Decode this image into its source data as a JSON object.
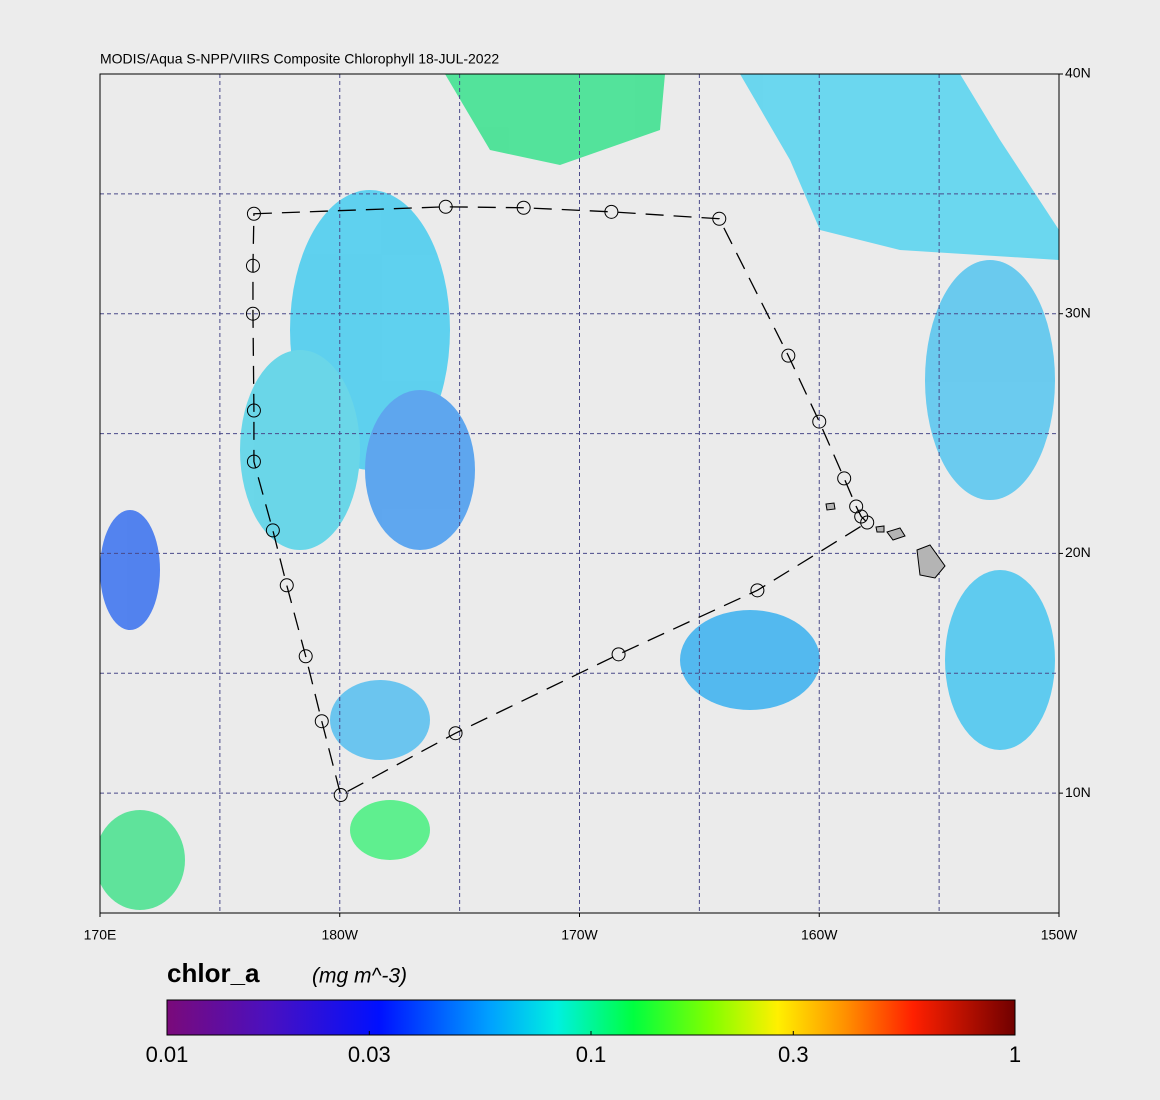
{
  "title": "MODIS/Aqua S-NPP/VIIRS Composite Chlorophyll 18-JUL-2022",
  "map": {
    "lonlim": [
      170,
      210
    ],
    "latlim": [
      5,
      40
    ],
    "lonticks": [
      {
        "value": 170,
        "label": "170E"
      },
      {
        "value": 180,
        "label": "180W"
      },
      {
        "value": 190,
        "label": "170W"
      },
      {
        "value": 200,
        "label": "160W"
      },
      {
        "value": 210,
        "label": "150W"
      }
    ],
    "latticks": [
      {
        "value": 40,
        "label": "40N"
      },
      {
        "value": 30,
        "label": "30N"
      },
      {
        "value": 20,
        "label": "20N"
      },
      {
        "value": 10,
        "label": "10N"
      }
    ],
    "grid_lon": [
      175,
      180,
      185,
      190,
      195,
      200,
      205
    ],
    "grid_lat": [
      10,
      15,
      20,
      25,
      30,
      35
    ],
    "track": {
      "lon": [
        176.42,
        184.42,
        187.67,
        191.33,
        195.83,
        198.71,
        200.0,
        201.04,
        201.54,
        201.75,
        202.0,
        197.42,
        191.63,
        184.83,
        180.04,
        179.25,
        178.58,
        177.79,
        177.21,
        176.42,
        176.42,
        176.38,
        176.38
      ],
      "lat": [
        34.17,
        34.46,
        34.42,
        34.25,
        33.96,
        28.25,
        25.5,
        23.13,
        21.96,
        21.54,
        21.29,
        18.46,
        15.79,
        12.5,
        9.92,
        13.0,
        15.71,
        18.67,
        20.96,
        23.83,
        25.96,
        30.0,
        32.0
      ]
    }
  },
  "colorbar": {
    "label": "chlor_a",
    "units": "(mg m^-3)",
    "range": [
      0.01,
      1
    ],
    "log": true,
    "ticks": [
      0.01,
      0.03,
      0.1,
      0.3,
      1
    ]
  }
}
